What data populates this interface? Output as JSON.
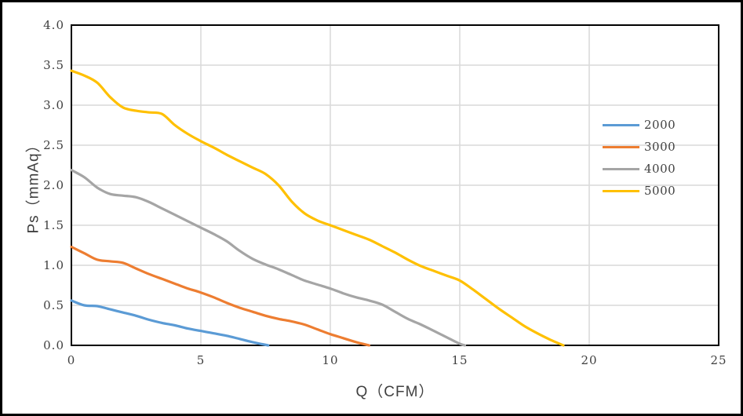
{
  "chart_data": {
    "type": "line",
    "title": "",
    "xlabel": "Q（CFM）",
    "ylabel": "Ps（mmAq）",
    "xlim": [
      0,
      25
    ],
    "ylim": [
      0,
      4
    ],
    "xticks": [
      "0",
      "5",
      "10",
      "15",
      "20",
      "25"
    ],
    "yticks": [
      "0.0",
      "0.5",
      "1.0",
      "1.5",
      "2.0",
      "2.5",
      "3.0",
      "3.5",
      "4.0"
    ],
    "grid": true,
    "legend_position": "right-inside",
    "colors": {
      "gridline": "#D9D9D9",
      "plot_border": "#000000",
      "text": "#404040"
    },
    "series": [
      {
        "name": "2000",
        "color": "#5B9BD5",
        "points": [
          [
            0,
            0.56
          ],
          [
            0.5,
            0.5
          ],
          [
            1,
            0.49
          ],
          [
            1.5,
            0.45
          ],
          [
            2,
            0.41
          ],
          [
            2.5,
            0.37
          ],
          [
            3,
            0.32
          ],
          [
            3.5,
            0.28
          ],
          [
            4,
            0.25
          ],
          [
            4.5,
            0.21
          ],
          [
            5,
            0.18
          ],
          [
            5.5,
            0.15
          ],
          [
            6,
            0.12
          ],
          [
            6.5,
            0.08
          ],
          [
            7,
            0.04
          ],
          [
            7.6,
            0
          ]
        ]
      },
      {
        "name": "3000",
        "color": "#ED7D31",
        "points": [
          [
            0,
            1.23
          ],
          [
            0.5,
            1.15
          ],
          [
            1,
            1.07
          ],
          [
            1.5,
            1.05
          ],
          [
            2,
            1.03
          ],
          [
            2.5,
            0.96
          ],
          [
            3,
            0.89
          ],
          [
            3.5,
            0.83
          ],
          [
            4,
            0.77
          ],
          [
            4.5,
            0.71
          ],
          [
            5,
            0.66
          ],
          [
            5.5,
            0.6
          ],
          [
            6,
            0.53
          ],
          [
            6.5,
            0.47
          ],
          [
            7,
            0.42
          ],
          [
            7.5,
            0.37
          ],
          [
            8,
            0.33
          ],
          [
            8.5,
            0.3
          ],
          [
            9,
            0.26
          ],
          [
            9.5,
            0.2
          ],
          [
            10,
            0.14
          ],
          [
            10.5,
            0.09
          ],
          [
            11,
            0.04
          ],
          [
            11.5,
            0
          ]
        ]
      },
      {
        "name": "4000",
        "color": "#A5A5A5",
        "points": [
          [
            0,
            2.19
          ],
          [
            0.5,
            2.1
          ],
          [
            1,
            1.97
          ],
          [
            1.5,
            1.89
          ],
          [
            2,
            1.87
          ],
          [
            2.5,
            1.85
          ],
          [
            3,
            1.79
          ],
          [
            3.5,
            1.71
          ],
          [
            4,
            1.63
          ],
          [
            4.5,
            1.55
          ],
          [
            5,
            1.47
          ],
          [
            5.5,
            1.39
          ],
          [
            6,
            1.3
          ],
          [
            6.5,
            1.18
          ],
          [
            7,
            1.08
          ],
          [
            7.5,
            1.01
          ],
          [
            8,
            0.95
          ],
          [
            8.5,
            0.88
          ],
          [
            9,
            0.81
          ],
          [
            9.5,
            0.76
          ],
          [
            10,
            0.71
          ],
          [
            10.5,
            0.65
          ],
          [
            11,
            0.6
          ],
          [
            11.5,
            0.56
          ],
          [
            12,
            0.51
          ],
          [
            12.5,
            0.42
          ],
          [
            13,
            0.33
          ],
          [
            13.5,
            0.26
          ],
          [
            14,
            0.18
          ],
          [
            14.5,
            0.1
          ],
          [
            15,
            0.02
          ],
          [
            15.2,
            0
          ]
        ]
      },
      {
        "name": "5000",
        "color": "#FFC000",
        "points": [
          [
            0,
            3.43
          ],
          [
            0.5,
            3.37
          ],
          [
            1,
            3.28
          ],
          [
            1.5,
            3.1
          ],
          [
            2,
            2.97
          ],
          [
            2.5,
            2.93
          ],
          [
            3,
            2.91
          ],
          [
            3.5,
            2.89
          ],
          [
            4,
            2.75
          ],
          [
            4.5,
            2.64
          ],
          [
            5,
            2.55
          ],
          [
            5.5,
            2.47
          ],
          [
            6,
            2.38
          ],
          [
            6.5,
            2.3
          ],
          [
            7,
            2.22
          ],
          [
            7.5,
            2.14
          ],
          [
            8,
            2.0
          ],
          [
            8.5,
            1.8
          ],
          [
            9,
            1.65
          ],
          [
            9.5,
            1.56
          ],
          [
            10,
            1.5
          ],
          [
            10.5,
            1.44
          ],
          [
            11,
            1.38
          ],
          [
            11.5,
            1.32
          ],
          [
            12,
            1.24
          ],
          [
            12.5,
            1.16
          ],
          [
            13,
            1.07
          ],
          [
            13.5,
            0.99
          ],
          [
            14,
            0.93
          ],
          [
            14.5,
            0.87
          ],
          [
            15,
            0.81
          ],
          [
            15.5,
            0.7
          ],
          [
            16,
            0.58
          ],
          [
            16.5,
            0.46
          ],
          [
            17,
            0.35
          ],
          [
            17.5,
            0.24
          ],
          [
            18,
            0.15
          ],
          [
            18.5,
            0.07
          ],
          [
            19,
            0
          ]
        ]
      }
    ]
  }
}
